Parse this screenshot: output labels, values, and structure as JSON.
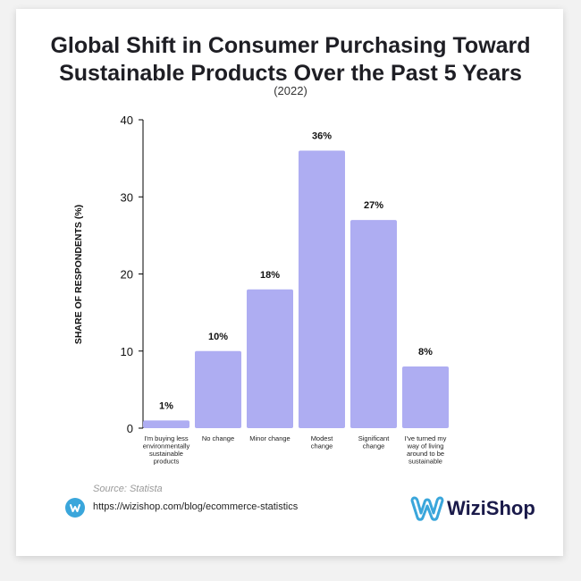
{
  "header": {
    "title_line1": "Global Shift in Consumer Purchasing Toward",
    "title_line2": "Sustainable Products Over the Past 5 Years",
    "subtitle": "(2022)"
  },
  "chart_data": {
    "type": "bar",
    "title": "Global Shift in Consumer Purchasing Toward Sustainable Products Over the Past 5 Years",
    "subtitle": "(2022)",
    "xlabel": "",
    "ylabel": "SHARE OF RESPONDENTS (%)",
    "ylim": [
      0,
      40
    ],
    "yticks": [
      0,
      10,
      20,
      30,
      40
    ],
    "categories": [
      "I'm buying less environmentally sustainable products",
      "No change",
      "Minor change",
      "Modest change",
      "Significant change",
      "I've turned my way of living around to be sustainable"
    ],
    "category_lines": [
      [
        "I'm buying less",
        "environmentally",
        "sustainable",
        "products"
      ],
      [
        "No change"
      ],
      [
        "Minor change"
      ],
      [
        "Modest",
        "change"
      ],
      [
        "Significant",
        "change"
      ],
      [
        "I've turned my",
        "way of living",
        "around to be",
        "sustainable"
      ]
    ],
    "values": [
      1,
      10,
      18,
      36,
      27,
      8
    ],
    "data_labels": [
      "1%",
      "10%",
      "18%",
      "36%",
      "27%",
      "8%"
    ],
    "bar_color": "#aeadf2",
    "grid": false,
    "legend": "none"
  },
  "footer": {
    "source": "Source: Statista",
    "link_icon": "wizishop-logo-icon",
    "url": "https://wizishop.com/blog/ecommerce-statistics",
    "brand_name": "WiziShop",
    "brand_icon": "wizishop-w-logo"
  }
}
